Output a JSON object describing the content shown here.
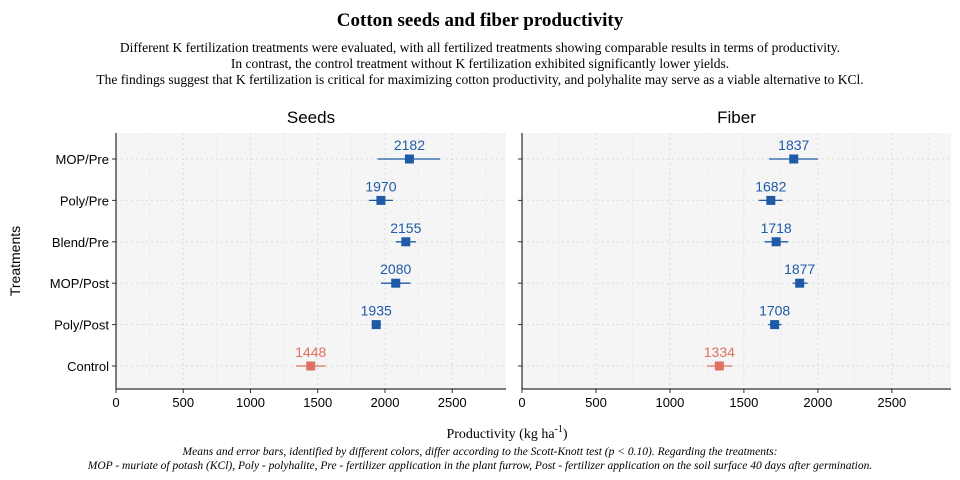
{
  "title": "Cotton seeds and fiber productivity",
  "subtitle_lines": [
    "Different K fertilization treatments were evaluated, with all fertilized treatments showing comparable results in terms of productivity.",
    "In contrast, the control treatment without K fertilization exhibited significantly lower yields.",
    "The findings suggest that K fertilization is critical for maximizing cotton productivity, and polyhalite may serve as a viable alternative to KCl."
  ],
  "caption_lines": [
    "Means and error bars, identified by different colors, differ according to the Scott-Knott test (p < 0.10). Regarding the treatments:",
    "MOP - muriate of potash (KCl), Poly - polyhalite, Pre - fertilizer application in the plant furrow, Post - fertilizer application on the soil surface 40 days after germination."
  ],
  "colors": {
    "group_a": "#1f5aa6",
    "group_b": "#e07060",
    "panel_bg": "#f5f5f5",
    "grid": "#dcdcdc"
  },
  "chart_data": {
    "type": "scatter",
    "xlabel": "Productivity (kg  ha",
    "xlabel_sup": "-1",
    "xlabel_close": ")",
    "ylabel": "Treatments",
    "categories": [
      "MOP/Pre",
      "Poly/Pre",
      "Blend/Pre",
      "MOP/Post",
      "Poly/Post",
      "Control"
    ],
    "xlim": [
      0,
      2900
    ],
    "xticks": [
      0,
      500,
      1000,
      1500,
      2000,
      2500
    ],
    "grid": true,
    "panels": [
      {
        "name": "Seeds",
        "points": [
          {
            "category": "MOP/Pre",
            "value": 2182,
            "low": 1945,
            "high": 2410,
            "label": "2182",
            "group": "a"
          },
          {
            "category": "Poly/Pre",
            "value": 1970,
            "low": 1880,
            "high": 2060,
            "label": "1970",
            "group": "a"
          },
          {
            "category": "Blend/Pre",
            "value": 2155,
            "low": 2080,
            "high": 2230,
            "label": "2155",
            "group": "a"
          },
          {
            "category": "MOP/Post",
            "value": 2080,
            "low": 1970,
            "high": 2190,
            "label": "2080",
            "group": "a"
          },
          {
            "category": "Poly/Post",
            "value": 1935,
            "low": 1900,
            "high": 1970,
            "label": "1935",
            "group": "a"
          },
          {
            "category": "Control",
            "value": 1448,
            "low": 1340,
            "high": 1560,
            "label": "1448",
            "group": "b"
          }
        ]
      },
      {
        "name": "Fiber",
        "points": [
          {
            "category": "MOP/Pre",
            "value": 1837,
            "low": 1670,
            "high": 2000,
            "label": "1837",
            "group": "a"
          },
          {
            "category": "Poly/Pre",
            "value": 1682,
            "low": 1600,
            "high": 1760,
            "label": "1682",
            "group": "a"
          },
          {
            "category": "Blend/Pre",
            "value": 1718,
            "low": 1640,
            "high": 1800,
            "label": "1718",
            "group": "a"
          },
          {
            "category": "MOP/Post",
            "value": 1877,
            "low": 1830,
            "high": 1930,
            "label": "1877",
            "group": "a"
          },
          {
            "category": "Poly/Post",
            "value": 1708,
            "low": 1665,
            "high": 1755,
            "label": "1708",
            "group": "a"
          },
          {
            "category": "Control",
            "value": 1334,
            "low": 1250,
            "high": 1420,
            "label": "1334",
            "group": "b"
          }
        ]
      }
    ]
  }
}
